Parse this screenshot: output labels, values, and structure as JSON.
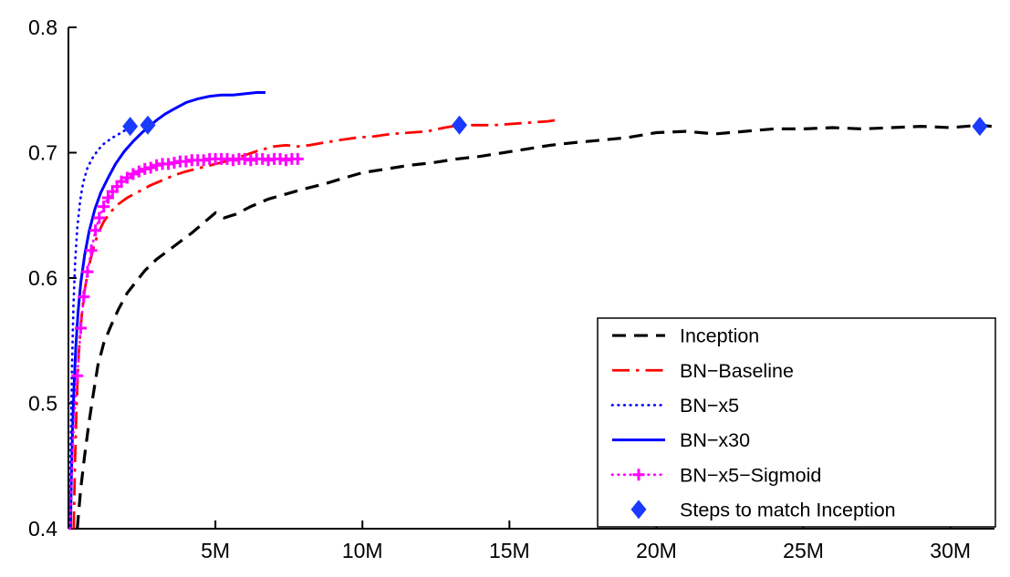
{
  "chart_data": {
    "type": "line",
    "title": "",
    "xlabel": "",
    "ylabel": "",
    "x_units": "training steps (millions)",
    "xlim": [
      0,
      31.5
    ],
    "ylim": [
      0.4,
      0.8
    ],
    "grid": false,
    "x_ticks": [
      {
        "value": 5,
        "label": "5M"
      },
      {
        "value": 10,
        "label": "10M"
      },
      {
        "value": 15,
        "label": "15M"
      },
      {
        "value": 20,
        "label": "20M"
      },
      {
        "value": 25,
        "label": "25M"
      },
      {
        "value": 30,
        "label": "30M"
      }
    ],
    "y_ticks": [
      {
        "value": 0.4,
        "label": "0.4"
      },
      {
        "value": 0.5,
        "label": "0.5"
      },
      {
        "value": 0.6,
        "label": "0.6"
      },
      {
        "value": 0.7,
        "label": "0.7"
      },
      {
        "value": 0.8,
        "label": "0.8"
      }
    ],
    "series": [
      {
        "name": "Inception",
        "color": "#000000",
        "style": "dashed",
        "points": [
          [
            0.3,
            0.4
          ],
          [
            0.42,
            0.432
          ],
          [
            0.55,
            0.458
          ],
          [
            0.7,
            0.485
          ],
          [
            0.85,
            0.508
          ],
          [
            1.0,
            0.53
          ],
          [
            1.2,
            0.548
          ],
          [
            1.45,
            0.562
          ],
          [
            1.7,
            0.575
          ],
          [
            2.0,
            0.588
          ],
          [
            2.3,
            0.597
          ],
          [
            2.6,
            0.606
          ],
          [
            3.0,
            0.615
          ],
          [
            3.4,
            0.622
          ],
          [
            3.8,
            0.629
          ],
          [
            4.2,
            0.636
          ],
          [
            4.6,
            0.644
          ],
          [
            5.0,
            0.652
          ],
          [
            5.3,
            0.648
          ],
          [
            5.7,
            0.651
          ],
          [
            6.2,
            0.657
          ],
          [
            6.8,
            0.663
          ],
          [
            7.4,
            0.667
          ],
          [
            8.0,
            0.671
          ],
          [
            8.7,
            0.675
          ],
          [
            9.4,
            0.68
          ],
          [
            10.0,
            0.684
          ],
          [
            10.8,
            0.687
          ],
          [
            11.6,
            0.69
          ],
          [
            12.4,
            0.692
          ],
          [
            13.2,
            0.695
          ],
          [
            14.0,
            0.697
          ],
          [
            14.8,
            0.7
          ],
          [
            15.6,
            0.703
          ],
          [
            16.4,
            0.706
          ],
          [
            17.2,
            0.708
          ],
          [
            18.1,
            0.71
          ],
          [
            19.0,
            0.712
          ],
          [
            20.0,
            0.716
          ],
          [
            21.0,
            0.717
          ],
          [
            22.0,
            0.715
          ],
          [
            23.0,
            0.717
          ],
          [
            24.0,
            0.719
          ],
          [
            25.0,
            0.719
          ],
          [
            26.0,
            0.72
          ],
          [
            27.0,
            0.719
          ],
          [
            28.0,
            0.72
          ],
          [
            29.0,
            0.721
          ],
          [
            30.0,
            0.72
          ],
          [
            31.0,
            0.722
          ],
          [
            31.4,
            0.721
          ]
        ]
      },
      {
        "name": "BN−Baseline",
        "color": "#ff0000",
        "style": "dashdot",
        "points": [
          [
            0.18,
            0.4
          ],
          [
            0.22,
            0.45
          ],
          [
            0.28,
            0.5
          ],
          [
            0.35,
            0.54
          ],
          [
            0.45,
            0.57
          ],
          [
            0.55,
            0.59
          ],
          [
            0.7,
            0.61
          ],
          [
            0.85,
            0.624
          ],
          [
            1.0,
            0.635
          ],
          [
            1.2,
            0.645
          ],
          [
            1.45,
            0.653
          ],
          [
            1.7,
            0.659
          ],
          [
            2.0,
            0.664
          ],
          [
            2.4,
            0.669
          ],
          [
            2.8,
            0.674
          ],
          [
            3.2,
            0.678
          ],
          [
            3.6,
            0.682
          ],
          [
            4.0,
            0.685
          ],
          [
            4.5,
            0.688
          ],
          [
            5.0,
            0.691
          ],
          [
            5.5,
            0.694
          ],
          [
            6.0,
            0.698
          ],
          [
            6.5,
            0.702
          ],
          [
            7.0,
            0.705
          ],
          [
            7.4,
            0.706
          ],
          [
            7.8,
            0.705
          ],
          [
            8.2,
            0.706
          ],
          [
            8.7,
            0.708
          ],
          [
            9.2,
            0.71
          ],
          [
            9.8,
            0.712
          ],
          [
            10.4,
            0.713
          ],
          [
            11.0,
            0.715
          ],
          [
            11.6,
            0.716
          ],
          [
            12.2,
            0.717
          ],
          [
            12.8,
            0.72
          ],
          [
            13.3,
            0.722
          ],
          [
            13.9,
            0.722
          ],
          [
            14.5,
            0.722
          ],
          [
            15.1,
            0.723
          ],
          [
            15.7,
            0.724
          ],
          [
            16.3,
            0.725
          ],
          [
            16.6,
            0.726
          ]
        ]
      },
      {
        "name": "BN−x5",
        "color": "#0000ff",
        "style": "dotted",
        "points": [
          [
            0.05,
            0.4
          ],
          [
            0.08,
            0.47
          ],
          [
            0.12,
            0.53
          ],
          [
            0.17,
            0.578
          ],
          [
            0.23,
            0.614
          ],
          [
            0.3,
            0.64
          ],
          [
            0.4,
            0.662
          ],
          [
            0.5,
            0.676
          ],
          [
            0.65,
            0.688
          ],
          [
            0.8,
            0.695
          ],
          [
            1.0,
            0.702
          ],
          [
            1.2,
            0.707
          ],
          [
            1.5,
            0.712
          ],
          [
            1.8,
            0.716
          ],
          [
            2.0,
            0.719
          ],
          [
            2.15,
            0.721
          ]
        ]
      },
      {
        "name": "BN−x30",
        "color": "#0000ff",
        "style": "solid",
        "points": [
          [
            0.07,
            0.4
          ],
          [
            0.1,
            0.44
          ],
          [
            0.14,
            0.478
          ],
          [
            0.19,
            0.513
          ],
          [
            0.25,
            0.545
          ],
          [
            0.33,
            0.573
          ],
          [
            0.42,
            0.596
          ],
          [
            0.55,
            0.618
          ],
          [
            0.7,
            0.637
          ],
          [
            0.9,
            0.655
          ],
          [
            1.1,
            0.668
          ],
          [
            1.35,
            0.68
          ],
          [
            1.6,
            0.691
          ],
          [
            1.9,
            0.701
          ],
          [
            2.2,
            0.709
          ],
          [
            2.5,
            0.716
          ],
          [
            2.75,
            0.721
          ],
          [
            3.0,
            0.726
          ],
          [
            3.3,
            0.731
          ],
          [
            3.6,
            0.735
          ],
          [
            4.0,
            0.74
          ],
          [
            4.4,
            0.743
          ],
          [
            4.8,
            0.745
          ],
          [
            5.2,
            0.746
          ],
          [
            5.6,
            0.746
          ],
          [
            6.0,
            0.747
          ],
          [
            6.4,
            0.748
          ],
          [
            6.7,
            0.748
          ]
        ]
      },
      {
        "name": "BN−x5−Sigmoid",
        "color": "#ff00ff",
        "style": "dotted",
        "marker": "plus",
        "marker_min_x": 0.28,
        "points": [
          [
            0.05,
            0.4
          ],
          [
            0.1,
            0.435
          ],
          [
            0.15,
            0.468
          ],
          [
            0.22,
            0.497
          ],
          [
            0.3,
            0.522
          ],
          [
            0.42,
            0.56
          ],
          [
            0.52,
            0.585
          ],
          [
            0.65,
            0.605
          ],
          [
            0.78,
            0.622
          ],
          [
            0.92,
            0.638
          ],
          [
            1.05,
            0.648
          ],
          [
            1.2,
            0.657
          ],
          [
            1.35,
            0.664
          ],
          [
            1.5,
            0.669
          ],
          [
            1.65,
            0.673
          ],
          [
            1.8,
            0.677
          ],
          [
            2.0,
            0.68
          ],
          [
            2.2,
            0.683
          ],
          [
            2.4,
            0.685
          ],
          [
            2.6,
            0.687
          ],
          [
            2.8,
            0.688
          ],
          [
            3.0,
            0.69
          ],
          [
            3.2,
            0.691
          ],
          [
            3.4,
            0.691
          ],
          [
            3.6,
            0.692
          ],
          [
            3.8,
            0.693
          ],
          [
            4.0,
            0.693
          ],
          [
            4.2,
            0.694
          ],
          [
            4.4,
            0.694
          ],
          [
            4.6,
            0.694
          ],
          [
            4.8,
            0.695
          ],
          [
            5.0,
            0.695
          ],
          [
            5.2,
            0.695
          ],
          [
            5.4,
            0.695
          ],
          [
            5.6,
            0.694
          ],
          [
            5.8,
            0.695
          ],
          [
            6.0,
            0.695
          ],
          [
            6.2,
            0.694
          ],
          [
            6.4,
            0.695
          ],
          [
            6.6,
            0.695
          ],
          [
            6.8,
            0.694
          ],
          [
            7.0,
            0.695
          ],
          [
            7.2,
            0.695
          ],
          [
            7.4,
            0.694
          ],
          [
            7.6,
            0.695
          ],
          [
            7.8,
            0.695
          ]
        ]
      }
    ],
    "markers": {
      "name": "Steps to match Inception",
      "color": "#1a3aff",
      "shape": "diamond",
      "points": [
        [
          2.1,
          0.721
        ],
        [
          2.7,
          0.722
        ],
        [
          13.3,
          0.722
        ],
        [
          31.0,
          0.721
        ]
      ]
    },
    "legend": {
      "position": "bottom-right",
      "entries": [
        {
          "label": "Inception",
          "color": "#000000",
          "style": "dashed",
          "marker": "none"
        },
        {
          "label": "BN−Baseline",
          "color": "#ff0000",
          "style": "dashdot",
          "marker": "none"
        },
        {
          "label": "BN−x5",
          "color": "#0000ff",
          "style": "dotted",
          "marker": "none"
        },
        {
          "label": "BN−x30",
          "color": "#0000ff",
          "style": "solid",
          "marker": "none"
        },
        {
          "label": "BN−x5−Sigmoid",
          "color": "#ff00ff",
          "style": "dotted",
          "marker": "plus"
        },
        {
          "label": "Steps to match Inception",
          "color": "#1a3aff",
          "style": "none",
          "marker": "diamond"
        }
      ]
    }
  }
}
